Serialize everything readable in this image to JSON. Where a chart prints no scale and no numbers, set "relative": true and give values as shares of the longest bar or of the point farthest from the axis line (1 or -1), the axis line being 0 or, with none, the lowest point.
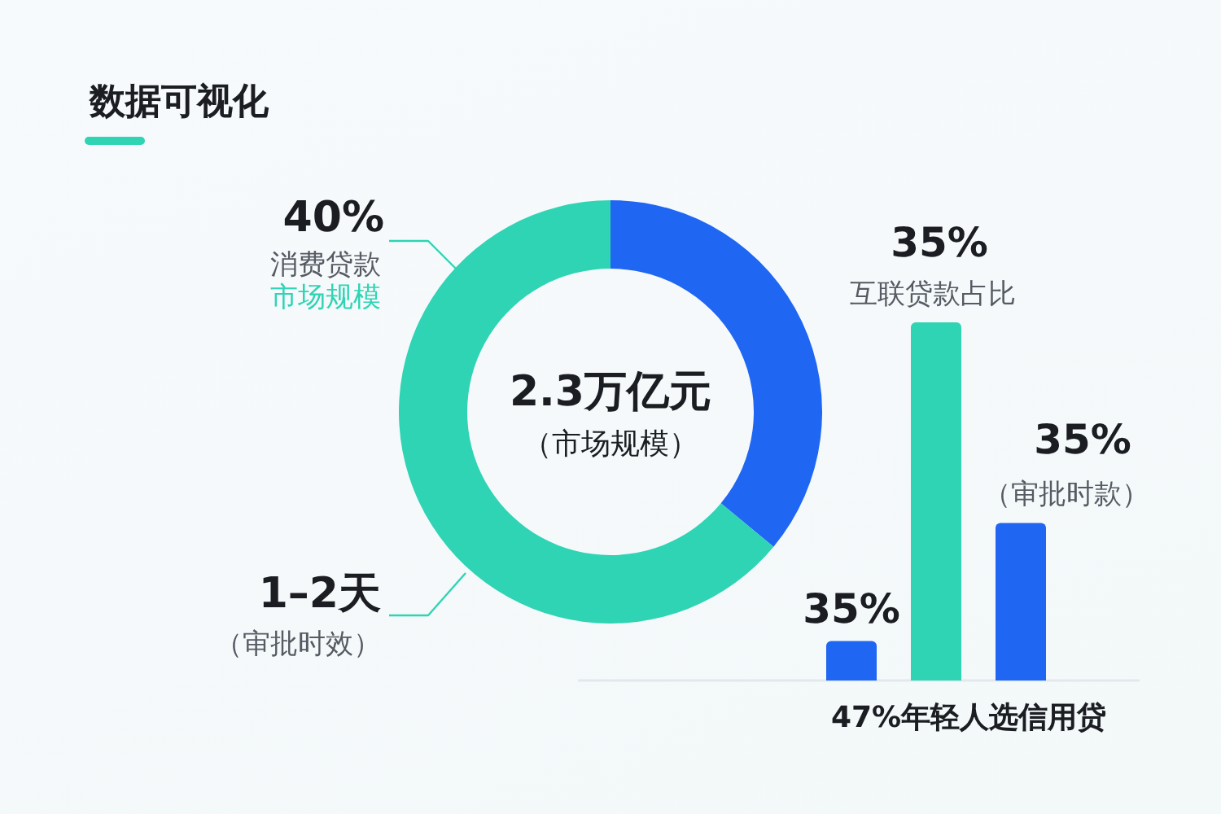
{
  "chart_data": [
    {
      "type": "donut",
      "title": "数据可视化",
      "categories": [
        null,
        null
      ],
      "values": [
        36,
        64
      ],
      "colors": [
        "#1f66f2",
        "#2fd4b4"
      ],
      "annotations": [
        "2.3万亿元",
        "（市场规模）",
        "40%",
        "消费贷款",
        "市场规模",
        "1–2天",
        "（审批时效）"
      ]
    },
    {
      "type": "bar",
      "relative": true,
      "categories": [
        null,
        null,
        null
      ],
      "values": [
        0.11,
        1,
        0.44
      ],
      "colors": [
        "#1f66f2",
        "#2fd4b4",
        "#1f66f2"
      ],
      "xlabel": "47%年轻人选信用贷",
      "annotations": [
        "35%",
        "35%",
        "互联贷款占比",
        "35%",
        "（审批时款）"
      ]
    }
  ]
}
